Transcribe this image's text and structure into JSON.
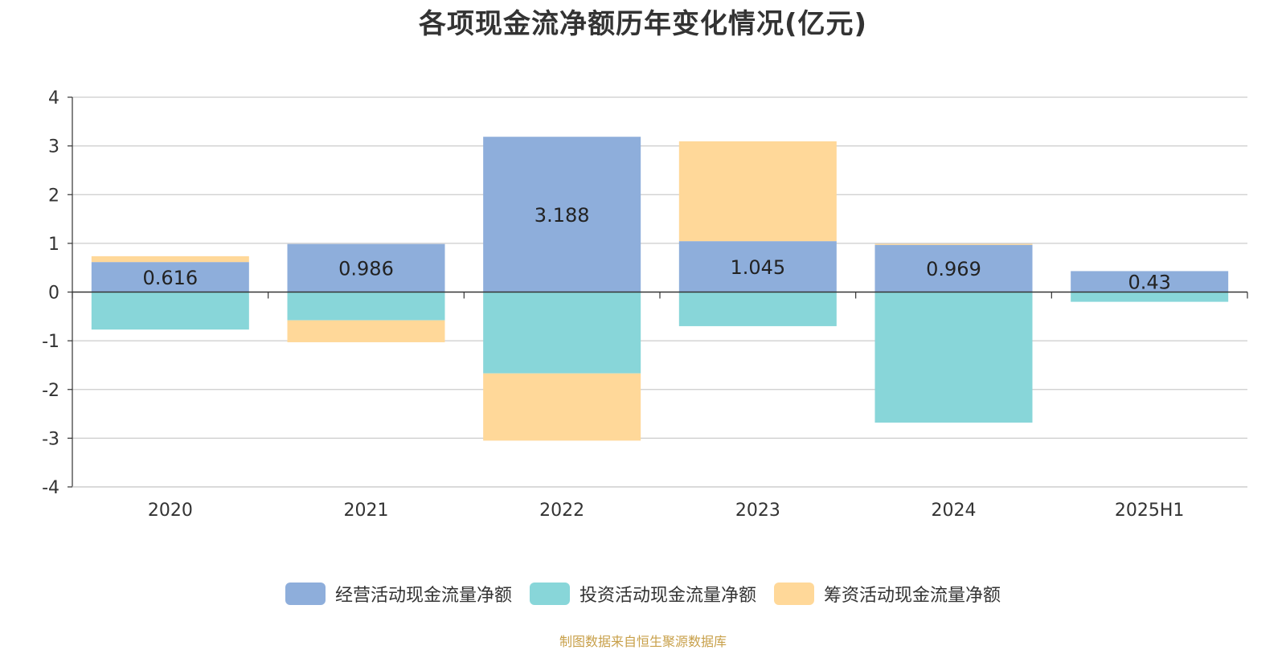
{
  "chart_data": {
    "type": "bar",
    "stacked": true,
    "title": "各项现金流净额历年变化情况(亿元)",
    "categories": [
      "2020",
      "2021",
      "2022",
      "2023",
      "2024",
      "2025H1"
    ],
    "ylim": [
      -4,
      4
    ],
    "yticks": [
      4,
      3,
      2,
      1,
      0,
      -1,
      -2,
      -3,
      -4
    ],
    "grid": true,
    "legend_position": "bottom",
    "series": [
      {
        "name": "经营活动现金流量净额",
        "color": "#8eaedb",
        "values": [
          0.616,
          0.986,
          3.188,
          1.045,
          0.969,
          0.43
        ],
        "labels": [
          "0.616",
          "0.986",
          "3.188",
          "1.045",
          "0.969",
          "0.43"
        ]
      },
      {
        "name": "投资活动现金流量净额",
        "color": "#88d6d9",
        "values": [
          -0.77,
          -0.58,
          -1.67,
          -0.7,
          -2.68,
          -0.2
        ]
      },
      {
        "name": "筹资活动现金流量净额",
        "color": "#ffd899",
        "values": [
          0.12,
          -0.45,
          -1.38,
          2.05,
          0.02,
          0
        ]
      }
    ]
  },
  "legend": {
    "items": [
      "经营活动现金流量净额",
      "投资活动现金流量净额",
      "筹资活动现金流量净额"
    ]
  },
  "source_note": "制图数据来自恒生聚源数据库"
}
